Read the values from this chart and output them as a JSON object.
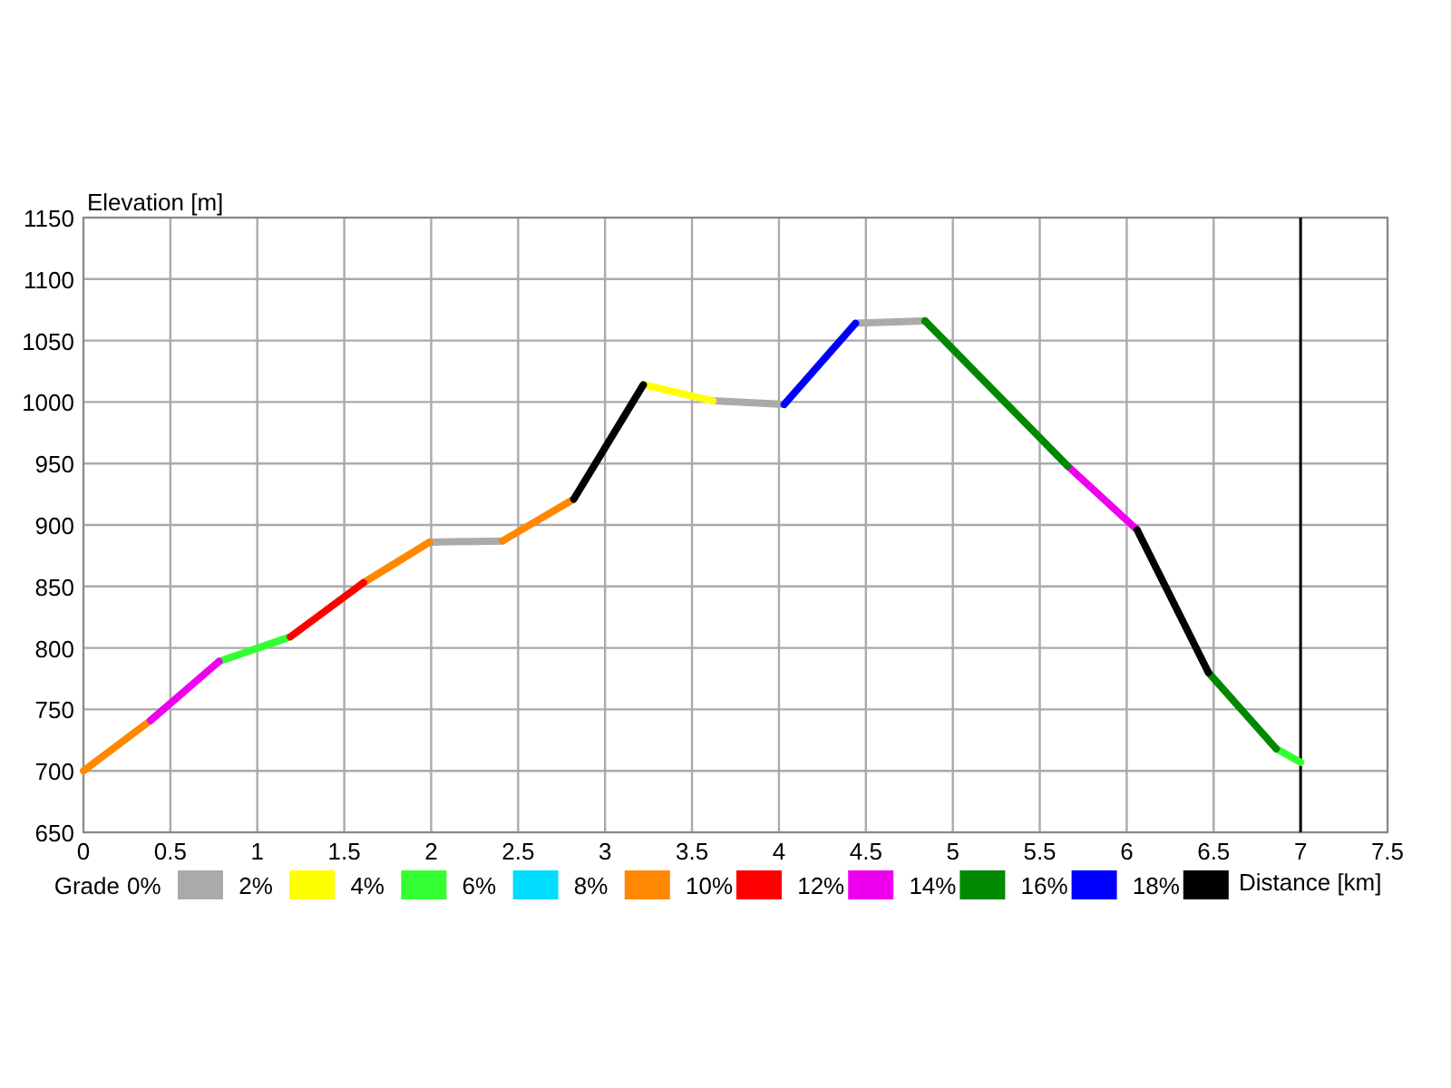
{
  "chart_data": {
    "type": "line",
    "xlabel": "Distance [km]",
    "ylabel": "Elevation [m]",
    "legend_title": "Grade",
    "legend": "bottom",
    "grid": true,
    "xlim": [
      0,
      7.5
    ],
    "xticks": [
      0,
      0.5,
      1,
      1.5,
      2,
      2.5,
      3,
      3.5,
      4,
      4.5,
      5,
      5.5,
      6,
      6.5,
      7,
      7.5
    ],
    "ylim": [
      650,
      1150
    ],
    "yticks": [
      650,
      700,
      750,
      800,
      850,
      900,
      950,
      1000,
      1050,
      1100,
      1150
    ],
    "ref_lines": [
      {
        "axis": "x",
        "value": 7,
        "color": "#000000"
      }
    ],
    "series": [
      {
        "name": "0%",
        "color": "#aaaaaa",
        "x": [
          1.99,
          2.41,
          null,
          3.62,
          4.03,
          null,
          4.44,
          4.84
        ],
        "values": [
          886,
          887,
          null,
          1001,
          998,
          null,
          1064,
          1066
        ]
      },
      {
        "name": "2%",
        "color": "#ffff00",
        "x": [
          3.22,
          3.62
        ],
        "values": [
          1014,
          1001
        ]
      },
      {
        "name": "4%",
        "color": "#33ff33",
        "x": [
          0.78,
          1.19,
          null,
          6.86,
          7.0
        ],
        "values": [
          789,
          809,
          null,
          718,
          707
        ]
      },
      {
        "name": "6%",
        "color": "#00ddff"
      },
      {
        "name": "8%",
        "color": "#ff8800",
        "x": [
          0,
          0.386,
          null,
          1.61,
          1.99,
          null,
          2.41,
          2.82
        ],
        "values": [
          700,
          741,
          null,
          853,
          886,
          null,
          887,
          921
        ]
      },
      {
        "name": "10%",
        "color": "#ff0000",
        "x": [
          1.19,
          1.61
        ],
        "values": [
          809,
          853
        ]
      },
      {
        "name": "12%",
        "color": "#ee00ee",
        "x": [
          0.386,
          0.78,
          null,
          5.66,
          6.06
        ],
        "values": [
          741,
          789,
          null,
          948,
          896
        ]
      },
      {
        "name": "14%",
        "color": "#008800",
        "x": [
          4.84,
          5.66,
          null,
          6.47,
          6.86
        ],
        "values": [
          1066,
          948,
          null,
          780,
          718
        ]
      },
      {
        "name": "16%",
        "color": "#0000ff",
        "x": [
          4.03,
          4.44
        ],
        "values": [
          998,
          1064
        ]
      },
      {
        "name": "18%",
        "color": "#000000",
        "x": [
          2.82,
          3.22,
          null,
          6.06,
          6.47
        ],
        "values": [
          921,
          1014,
          null,
          896,
          780
        ]
      }
    ]
  }
}
